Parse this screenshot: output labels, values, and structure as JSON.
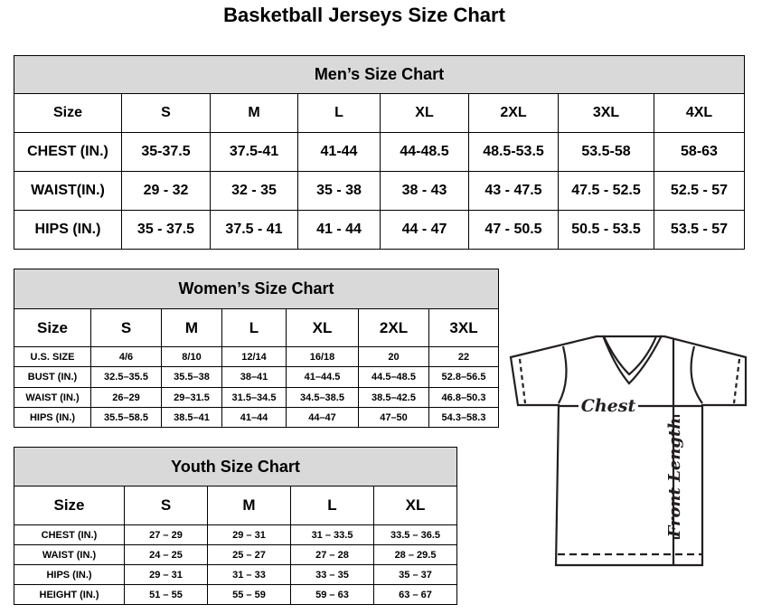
{
  "title": "Basketball Jerseys Size Chart",
  "men": {
    "caption": "Men’s Size Chart",
    "header": [
      "Size",
      "S",
      "M",
      "L",
      "XL",
      "2XL",
      "3XL",
      "4XL"
    ],
    "rows": [
      [
        "CHEST (IN.)",
        "35-37.5",
        "37.5-41",
        "41-44",
        "44-48.5",
        "48.5-53.5",
        "53.5-58",
        "58-63"
      ],
      [
        "WAIST(IN.)",
        "29 - 32",
        "32 - 35",
        "35 - 38",
        "38 - 43",
        "43 - 47.5",
        "47.5 - 52.5",
        "52.5 - 57"
      ],
      [
        "HIPS (IN.)",
        "35 - 37.5",
        "37.5 - 41",
        "41 - 44",
        "44 - 47",
        "47 - 50.5",
        "50.5 - 53.5",
        "53.5 - 57"
      ]
    ]
  },
  "women": {
    "caption": "Women’s Size Chart",
    "header": [
      "Size",
      "S",
      "M",
      "L",
      "XL",
      "2XL",
      "3XL"
    ],
    "rows": [
      [
        "U.S. SIZE",
        "4/6",
        "8/10",
        "12/14",
        "16/18",
        "20",
        "22"
      ],
      [
        "BUST (IN.)",
        "32.5–35.5",
        "35.5–38",
        "38–41",
        "41–44.5",
        "44.5–48.5",
        "52.8–56.5"
      ],
      [
        "WAIST (IN.)",
        "26–29",
        "29–31.5",
        "31.5–34.5",
        "34.5–38.5",
        "38.5–42.5",
        "46.8–50.3"
      ],
      [
        "HIPS (IN.)",
        "35.5–58.5",
        "38.5–41",
        "41–44",
        "44–47",
        "47–50",
        "54.3–58.3"
      ]
    ]
  },
  "youth": {
    "caption": "Youth Size Chart",
    "header": [
      "Size",
      "S",
      "M",
      "L",
      "XL"
    ],
    "rows": [
      [
        "CHEST (IN.)",
        "27 – 29",
        "29 – 31",
        "31 – 33.5",
        "33.5 – 36.5"
      ],
      [
        "WAIST (IN.)",
        "24 – 25",
        "25 – 27",
        "27 – 28",
        "28 – 29.5"
      ],
      [
        "HIPS (IN.)",
        "29 – 31",
        "31 – 33",
        "33 – 35",
        "35 – 37"
      ],
      [
        "HEIGHT (IN.)",
        "51 – 55",
        "55 – 59",
        "59 – 63",
        "63 – 67"
      ]
    ]
  },
  "diagram": {
    "chest_label": "Chest",
    "length_label": "Front Length"
  },
  "colors": {
    "caption_bg": "#d9d9d9"
  }
}
